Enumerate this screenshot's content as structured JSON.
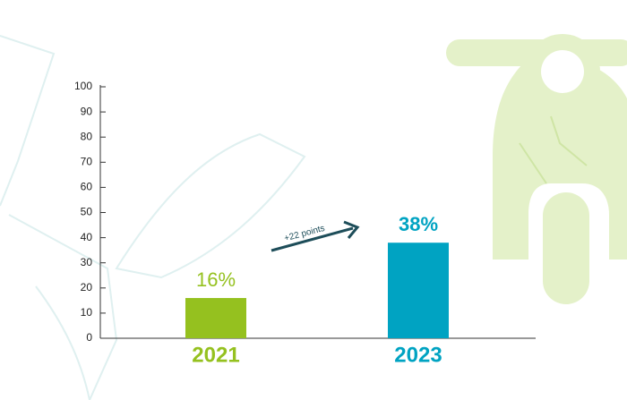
{
  "chart_data": {
    "type": "bar",
    "categories": [
      "2021",
      "2023"
    ],
    "values": [
      16,
      38
    ],
    "value_labels": [
      "16%",
      "38%"
    ],
    "colors": [
      "#95c11f",
      "#00a3c2"
    ],
    "ylim": [
      0,
      100
    ],
    "yticks": [
      0,
      10,
      20,
      30,
      40,
      50,
      60,
      70,
      80,
      90,
      100
    ],
    "annotation": "+22 points"
  }
}
